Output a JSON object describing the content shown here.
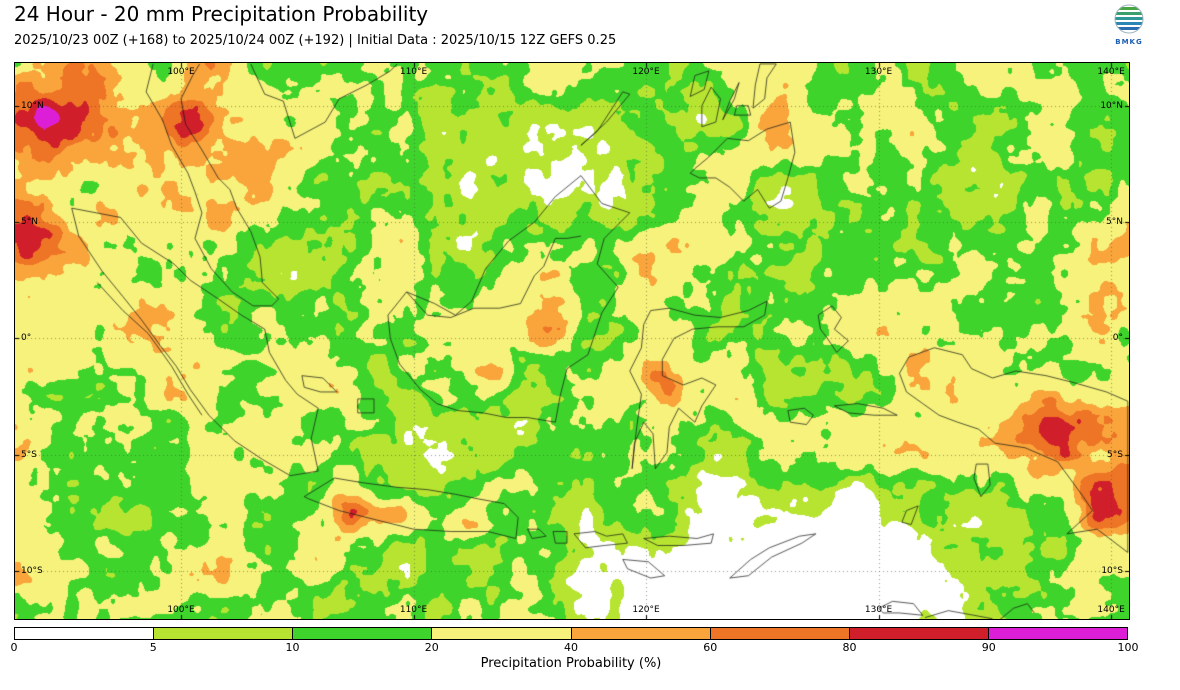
{
  "header": {
    "title": "24 Hour - 20 mm Precipitation Probability",
    "subtitle": "2025/10/23 00Z (+168) to 2025/10/24 00Z (+192) | Initial Data : 2025/10/15 12Z GEFS 0.25",
    "logo_text": "BMKG"
  },
  "map": {
    "extent": {
      "lon_min": 92.86,
      "lon_max": 140.77,
      "lat_min": -12.06,
      "lat_max": 11.84
    },
    "grid_lons": [
      100,
      110,
      120,
      130,
      140
    ],
    "grid_lats": [
      10,
      5,
      0,
      -5,
      -10
    ],
    "lon_labels": [
      {
        "text": "100°E",
        "lon": 100
      },
      {
        "text": "110°E",
        "lon": 110
      },
      {
        "text": "120°E",
        "lon": 120
      },
      {
        "text": "130°E",
        "lon": 130
      },
      {
        "text": "140°E",
        "lon": 140
      }
    ],
    "lat_labels": [
      {
        "text": "10°N",
        "lat": 10
      },
      {
        "text": "5°N",
        "lat": 5
      },
      {
        "text": "0°",
        "lat": 0
      },
      {
        "text": "5°S",
        "lat": -5
      },
      {
        "text": "10°S",
        "lat": -10
      }
    ],
    "field": {
      "seed": 20251015,
      "octaves": [
        {
          "cell": 64,
          "amp": 0.42
        },
        {
          "cell": 30,
          "amp": 0.28
        },
        {
          "cell": 14,
          "amp": 0.2
        },
        {
          "cell": 7,
          "amp": 0.1
        }
      ],
      "level_fracs": [
        0.07,
        0.16,
        0.33,
        0.355,
        0.057,
        0.019,
        0.0083,
        0.0007
      ],
      "hotspots": [
        [
          94.3,
          9.8,
          0.5,
          55
        ],
        [
          94.1,
          9.7,
          0.5,
          9
        ],
        [
          93.2,
          4.3,
          0.38,
          26
        ],
        [
          100.3,
          9.6,
          0.42,
          20
        ],
        [
          115.7,
          0.9,
          0.5,
          28
        ],
        [
          113.4,
          -1.6,
          0.3,
          16
        ],
        [
          120.5,
          -1.8,
          0.42,
          16
        ],
        [
          107.6,
          -7.4,
          0.4,
          18
        ],
        [
          109.4,
          -7.7,
          0.33,
          14
        ],
        [
          112.4,
          -7.9,
          0.5,
          16
        ],
        [
          106.0,
          -9.4,
          0.33,
          20
        ],
        [
          137.2,
          -4.0,
          0.62,
          24
        ],
        [
          139.3,
          -5.2,
          0.4,
          48
        ],
        [
          140.2,
          -7.6,
          0.28,
          26
        ],
        [
          96.5,
          1.5,
          0.13,
          140
        ],
        [
          115.5,
          6.8,
          -0.4,
          52
        ],
        [
          120.8,
          10.8,
          -0.33,
          42
        ],
        [
          128.0,
          3.2,
          -0.28,
          38
        ],
        [
          134.5,
          9.0,
          -0.26,
          42
        ],
        [
          121.0,
          -11.9,
          -0.5,
          85
        ],
        [
          130.5,
          -11.2,
          -0.5,
          80
        ],
        [
          127.0,
          -11.2,
          -0.4,
          60
        ],
        [
          111.0,
          -5.0,
          -0.22,
          26
        ],
        [
          117.0,
          -2.0,
          -0.1,
          160
        ],
        [
          104.0,
          2.2,
          -0.18,
          36
        ]
      ]
    },
    "coastlines": [
      [
        95.3,
        5.6,
        97.4,
        5.2,
        98.3,
        4.1,
        99.7,
        3.2,
        100.4,
        2.5,
        101.6,
        1.7,
        102.6,
        1.0,
        103.6,
        0.4,
        103.8,
        -0.6,
        104.5,
        -1.8,
        105.0,
        -2.4,
        105.9,
        -3.0,
        105.6,
        -4.3,
        105.9,
        -5.7,
        104.7,
        -5.9,
        103.5,
        -5.2,
        102.3,
        -4.4,
        101.2,
        -3.3,
        100.4,
        -2.2,
        99.8,
        -1.2,
        99.1,
        -0.3,
        98.3,
        0.8,
        97.5,
        1.8,
        96.6,
        2.9,
        95.6,
        4.4,
        95.3,
        5.6
      ],
      [
        105.3,
        -6.8,
        106.6,
        -6.0,
        107.8,
        -6.2,
        109.3,
        -6.4,
        110.6,
        -6.5,
        111.8,
        -6.7,
        112.8,
        -6.9,
        113.9,
        -7.1,
        114.5,
        -7.7,
        114.4,
        -8.6,
        113.2,
        -8.3,
        111.6,
        -8.3,
        110.0,
        -8.2,
        108.4,
        -7.8,
        106.8,
        -7.4,
        105.5,
        -6.9,
        105.3,
        -6.8
      ],
      [
        109.0,
        0.0,
        108.9,
        1.0,
        109.7,
        2.0,
        110.9,
        1.5,
        111.8,
        1.0,
        112.5,
        1.6,
        113.1,
        3.0,
        114.1,
        4.2,
        115.2,
        5.0,
        116.1,
        6.1,
        117.2,
        7.0,
        118.1,
        5.8,
        119.3,
        5.4,
        118.2,
        4.3,
        117.9,
        3.2,
        118.8,
        2.2,
        118.1,
        1.1,
        117.8,
        0.2,
        117.5,
        -0.7,
        116.6,
        -1.3,
        116.3,
        -2.5,
        116.1,
        -3.6,
        114.9,
        -3.4,
        114.0,
        -3.4,
        113.0,
        -3.2,
        111.9,
        -3.1,
        111.0,
        -2.8,
        110.3,
        -2.2,
        109.4,
        -1.1,
        109.0,
        0.0
      ],
      [
        109.7,
        2.0,
        110.6,
        1.0,
        111.6,
        0.9,
        112.6,
        1.3,
        113.7,
        1.3,
        114.6,
        1.5,
        115.2,
        2.7,
        115.6,
        3.1,
        116.1,
        4.3,
        116.6,
        4.3,
        117.2,
        4.4
      ],
      [
        119.9,
        0.6,
        120.2,
        1.2,
        121.0,
        1.3,
        122.1,
        1.0,
        123.2,
        0.9,
        124.4,
        1.2,
        125.2,
        1.6,
        125.1,
        1.0,
        124.2,
        0.5,
        123.1,
        0.5,
        122.0,
        0.4,
        121.2,
        0.0,
        120.7,
        -0.9,
        120.7,
        -1.6,
        121.6,
        -2.0,
        122.4,
        -1.7,
        123.0,
        -2.0,
        122.4,
        -2.9,
        122.1,
        -3.6,
        121.4,
        -3.0,
        121.0,
        -3.8,
        120.9,
        -4.9,
        120.4,
        -5.6,
        120.3,
        -4.1,
        119.9,
        -3.6,
        119.5,
        -4.5,
        119.4,
        -5.6,
        119.6,
        -3.8,
        119.8,
        -2.4,
        119.3,
        -1.4,
        119.8,
        -0.4,
        119.9,
        0.6
      ],
      [
        131.3,
        -0.8,
        132.4,
        -0.4,
        133.6,
        -0.7,
        134.0,
        -1.3,
        134.9,
        -1.7,
        135.9,
        -1.4,
        137.2,
        -1.6,
        138.4,
        -1.9,
        139.8,
        -2.3,
        140.72,
        -2.7,
        140.72,
        -9.2,
        139.4,
        -8.2,
        138.1,
        -8.4,
        139.2,
        -7.4,
        138.8,
        -6.8,
        137.7,
        -5.3,
        136.3,
        -4.7,
        135.0,
        -4.5,
        134.3,
        -3.9,
        133.4,
        -3.6,
        132.6,
        -3.3,
        131.9,
        -2.8,
        131.2,
        -2.3,
        130.9,
        -1.5,
        131.3,
        -0.8
      ],
      [
        127.4,
        1.0,
        128.0,
        1.4,
        128.4,
        0.9,
        128.1,
        0.4,
        128.7,
        -0.1,
        128.2,
        -0.6,
        127.8,
        0.0,
        127.5,
        0.4,
        127.4,
        1.0
      ],
      [
        128.1,
        -2.9,
        129.1,
        -2.8,
        130.2,
        -3.0,
        130.8,
        -3.3,
        129.8,
        -3.3,
        128.7,
        -3.2,
        128.1,
        -2.9
      ],
      [
        126.1,
        -3.1,
        126.8,
        -3.0,
        127.2,
        -3.3,
        126.9,
        -3.7,
        126.2,
        -3.6,
        126.1,
        -3.1
      ],
      [
        114.9,
        -8.2,
        115.4,
        -8.2,
        115.7,
        -8.5,
        115.1,
        -8.6,
        114.9,
        -8.2
      ],
      [
        116.0,
        -8.3,
        116.6,
        -8.3,
        116.6,
        -8.8,
        116.1,
        -8.8,
        116.0,
        -8.3
      ],
      [
        116.9,
        -8.4,
        117.8,
        -8.3,
        118.3,
        -8.5,
        119.0,
        -8.4,
        119.2,
        -8.8,
        118.2,
        -8.9,
        117.4,
        -9.0,
        116.9,
        -8.4
      ],
      [
        119.9,
        -8.6,
        121.0,
        -8.5,
        122.2,
        -8.6,
        122.9,
        -8.4,
        122.8,
        -8.8,
        121.6,
        -8.9,
        120.5,
        -8.9,
        119.9,
        -8.6
      ],
      [
        119.0,
        -9.5,
        120.1,
        -9.6,
        120.8,
        -10.2,
        120.2,
        -10.3,
        119.2,
        -9.9,
        119.0,
        -9.5
      ],
      [
        123.6,
        -10.3,
        124.5,
        -9.5,
        125.3,
        -9.0,
        126.6,
        -8.5,
        127.3,
        -8.4,
        126.7,
        -8.8,
        125.4,
        -9.4,
        124.4,
        -10.2,
        123.6,
        -10.3
      ],
      [
        98.8,
        11.8,
        98.5,
        10.6,
        99.2,
        9.4,
        99.6,
        8.3,
        100.3,
        7.1,
        100.6,
        6.3,
        100.9,
        5.4,
        100.6,
        4.3,
        101.3,
        3.0,
        102.2,
        2.0,
        103.1,
        1.4,
        103.9,
        1.4,
        104.2,
        1.7,
        103.5,
        2.4,
        103.4,
        3.5,
        103.0,
        4.6,
        102.4,
        5.6,
        102.1,
        6.4,
        101.6,
        6.9,
        100.9,
        8.1,
        100.2,
        9.2,
        100.0,
        10.3,
        100.5,
        11.3,
        100.8,
        11.8
      ],
      [
        103.0,
        11.8,
        103.6,
        10.5,
        104.4,
        10.2,
        104.9,
        8.6,
        106.2,
        9.3,
        106.8,
        10.3,
        108.0,
        10.9,
        109.0,
        11.5,
        109.3,
        11.8
      ],
      [
        117.2,
        8.3,
        118.3,
        9.3,
        119.3,
        10.5,
        119.0,
        10.6,
        117.9,
        8.9,
        117.2,
        8.3
      ],
      [
        122.1,
        7.3,
        122.7,
        7.8,
        123.5,
        8.6,
        124.4,
        8.5,
        125.2,
        9.0,
        126.2,
        9.3,
        126.4,
        8.0,
        126.1,
        6.9,
        125.8,
        5.9,
        125.3,
        5.6,
        124.8,
        6.4,
        124.2,
        5.9,
        123.6,
        6.5,
        123.0,
        6.9,
        122.3,
        6.9,
        121.9,
        7.1,
        122.1,
        7.3
      ],
      [
        122.4,
        9.1,
        123.0,
        9.3,
        123.2,
        10.3,
        122.8,
        10.8,
        122.4,
        10.0,
        122.4,
        9.1
      ],
      [
        123.3,
        9.4,
        123.8,
        10.3,
        124.0,
        11.0,
        123.6,
        10.2,
        123.3,
        9.4
      ],
      [
        121.9,
        10.4,
        122.5,
        10.7,
        122.7,
        11.5,
        122.1,
        11.3,
        121.9,
        10.4
      ],
      [
        124.6,
        9.9,
        125.1,
        10.3,
        125.2,
        11.2,
        125.6,
        11.8,
        124.9,
        11.8,
        124.7,
        10.9,
        124.6,
        9.9
      ],
      [
        123.8,
        9.6,
        124.5,
        9.6,
        124.4,
        10.0,
        123.9,
        10.0,
        123.8,
        9.6
      ],
      [
        105.2,
        -1.6,
        106.1,
        -1.7,
        106.7,
        -2.3,
        106.0,
        -2.3,
        105.3,
        -2.1,
        105.2,
        -1.6
      ],
      [
        107.6,
        -2.6,
        108.3,
        -2.6,
        108.3,
        -3.2,
        107.6,
        -3.2,
        107.6,
        -2.6
      ],
      [
        134.2,
        -5.4,
        134.7,
        -5.4,
        134.8,
        -6.3,
        134.4,
        -6.8,
        134.1,
        -6.0,
        134.2,
        -5.4
      ],
      [
        131.2,
        -7.4,
        131.7,
        -7.2,
        131.4,
        -8.0,
        131.0,
        -7.9,
        131.2,
        -7.4
      ],
      [
        130.0,
        -11.6,
        130.6,
        -11.3,
        131.5,
        -11.4,
        131.9,
        -11.9,
        130.9,
        -11.8,
        130.2,
        -11.8,
        130.0,
        -11.6
      ],
      [
        132.0,
        -12.0,
        133.0,
        -11.7,
        134.1,
        -11.9,
        134.9,
        -12.05
      ],
      [
        135.2,
        -12.1,
        135.8,
        -11.6,
        136.4,
        -11.4,
        136.7,
        -11.8
      ],
      [
        96.4,
        2.4,
        97.5,
        1.2,
        98.6,
        0.2,
        99.6,
        -1.2,
        100.3,
        -2.4,
        100.9,
        -3.3
      ]
    ]
  },
  "colorbar": {
    "title": "Precipitation Probability (%)",
    "tick_labels": [
      "0",
      "5",
      "10",
      "20",
      "40",
      "60",
      "80",
      "90",
      "100"
    ],
    "colors": [
      "#ffffff",
      "#b7e431",
      "#3fd42c",
      "#f6f27b",
      "#f9a53c",
      "#ee7426",
      "#d01f2a",
      "#dc1fd6"
    ],
    "level_ranges": [
      "0-5",
      "5-10",
      "10-20",
      "20-40",
      "40-60",
      "60-80",
      "80-90",
      "90-100"
    ]
  }
}
